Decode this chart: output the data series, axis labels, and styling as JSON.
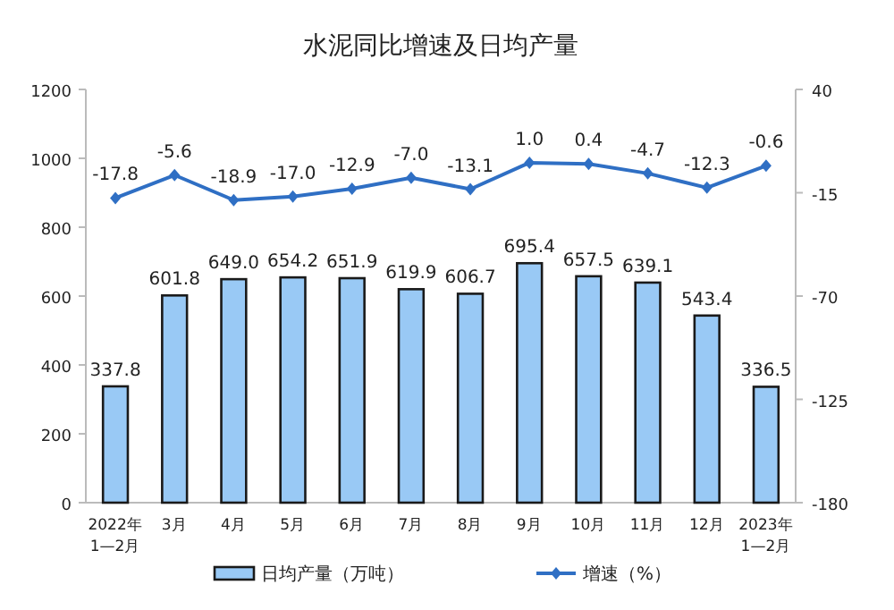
{
  "chart_data": {
    "type": "bar",
    "title": "水泥同比增速及日均产量",
    "categories": [
      "2022年\n1—2月",
      "3月",
      "4月",
      "5月",
      "6月",
      "7月",
      "8月",
      "9月",
      "10月",
      "11月",
      "12月",
      "2023年\n1—2月"
    ],
    "series": [
      {
        "name": "日均产量（万吨）",
        "color": "#99c9f5",
        "values": [
          337.8,
          601.8,
          649.0,
          654.2,
          651.9,
          619.9,
          606.7,
          695.4,
          657.5,
          639.1,
          543.4,
          336.5
        ],
        "value_labels": [
          "337.8",
          "601.8",
          "649.0",
          "654.2",
          "651.9",
          "619.9",
          "606.7",
          "695.4",
          "657.5",
          "639.1",
          "543.4",
          "336.5"
        ]
      },
      {
        "name": "增速（%）",
        "type": "line",
        "axis": "y2",
        "color": "#2f6fc4",
        "marker": "diamond",
        "values": [
          -17.8,
          -5.6,
          -18.9,
          -17.0,
          -12.9,
          -7.0,
          -13.1,
          1.0,
          0.4,
          -4.7,
          -12.3,
          -0.6
        ],
        "value_labels": [
          "-17.8",
          "-5.6",
          "-18.9",
          "-17.0",
          "-12.9",
          "-7.0",
          "-13.1",
          "1.0",
          "0.4",
          "-4.7",
          "-12.3",
          "-0.6"
        ]
      }
    ],
    "ylim": [
      0,
      1200
    ],
    "yticks": [
      0,
      200,
      400,
      600,
      800,
      1000,
      1200
    ],
    "y2lim": [
      -180,
      40
    ],
    "y2ticks": [
      -180,
      -125,
      -70,
      -15,
      40
    ],
    "grid": false,
    "legend": "bottom"
  }
}
